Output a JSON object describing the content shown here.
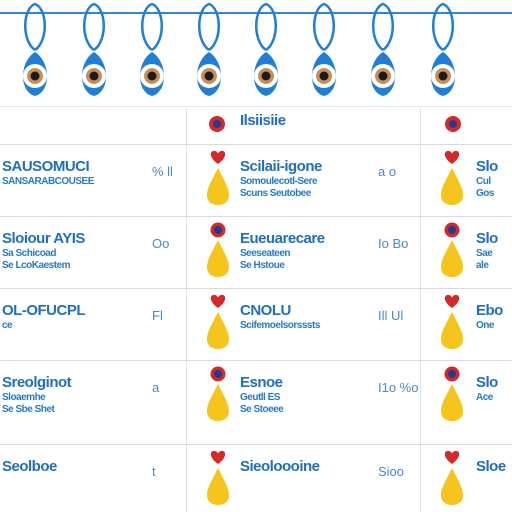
{
  "colors": {
    "charm_blue": "#1f7fd6",
    "text_blue": "#1f6fbf",
    "heart_red": "#d62828",
    "drop_yellow": "#f6c51b",
    "ring_navy": "#1f3d8f",
    "grid": "#d7dbe2"
  },
  "charms": [
    "eye-charm",
    "eye-charm",
    "eye-charm",
    "eye-charm",
    "eye-charm",
    "eye-charm",
    "eye-charm",
    "eye-charm"
  ],
  "header": {
    "label": "Ilsiisiie"
  },
  "rows": [
    {
      "left_title": "SAUSOMUCI",
      "left_sub": "SANSARABCOUSEE",
      "left_note": "",
      "mid_small": "% ll",
      "mid_icon": "heart-drop",
      "mid_title": "Scilaii-igone",
      "mid_sub": "Somoulecotl-Sere",
      "mid_sub2": "Scuns Seutobee",
      "right_small": "a  o",
      "right_icon": "heart-drop",
      "right_title": "Slo",
      "right_sub": "Cul",
      "right_sub2": "Gos"
    },
    {
      "left_title": "Sloiour AYIS",
      "left_sub": "Sa Schicoad",
      "left_note": "Se LcoKaestem",
      "mid_small": "Oo",
      "mid_icon": "ring-drop",
      "mid_title": "Eueuarecare",
      "mid_sub": "Seeseateen",
      "mid_sub2": "Se Hstoue",
      "right_small": "Io Bo",
      "right_icon": "ring-drop",
      "right_title": "Slo",
      "right_sub": "Sae",
      "right_sub2": "ale"
    },
    {
      "left_title": "OL-OFUCPL",
      "left_sub": "ce",
      "left_note": "",
      "mid_small": "Fl",
      "mid_icon": "heart-drop",
      "mid_title": "CNOLU",
      "mid_sub": "Scifemoelsorsssts",
      "mid_sub2": "",
      "right_small": "Ill  Ul",
      "right_icon": "heart-drop",
      "right_title": "Ebo",
      "right_sub": "One",
      "right_sub2": ""
    },
    {
      "left_title": "Sreolginot",
      "left_sub": "Sloaemhe",
      "left_note": "Se Sbe Shet",
      "mid_small": "a",
      "mid_icon": "ring-drop",
      "mid_title": "Esnoe",
      "mid_sub": "Geutll ES",
      "mid_sub2": "Se Stoeee",
      "right_small": "I1o  %o",
      "right_icon": "ring-drop",
      "right_title": "Slo",
      "right_sub": "Ace",
      "right_sub2": ""
    },
    {
      "left_title": "Seolboe",
      "left_sub": "",
      "left_note": "",
      "mid_small": "t",
      "mid_icon": "heart-drop",
      "mid_title": "Sieoloooine",
      "mid_sub": "",
      "mid_sub2": "",
      "right_small": "Sioo",
      "right_icon": "heart-drop",
      "right_title": "Sloe",
      "right_sub": "",
      "right_sub2": ""
    }
  ]
}
